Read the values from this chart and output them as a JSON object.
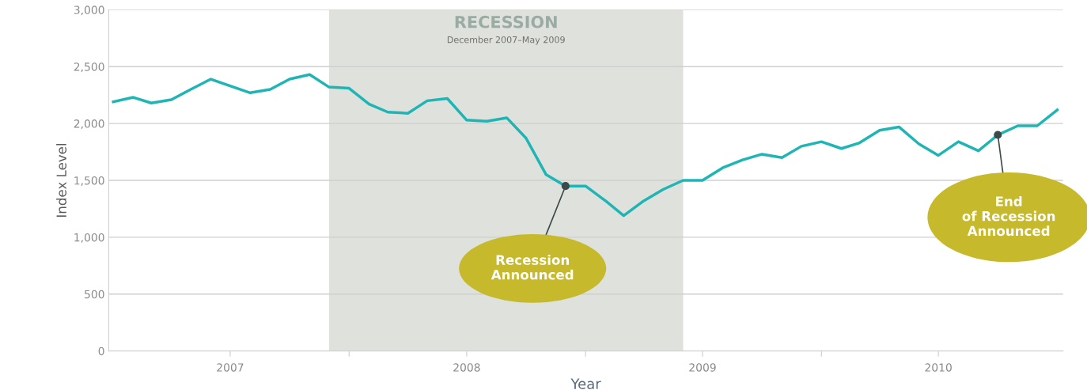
{
  "chart_data": {
    "type": "line",
    "xlabel": "Year",
    "ylabel": "Index Level",
    "x": [
      "2007-01",
      "2007-02",
      "2007-03",
      "2007-04",
      "2007-05",
      "2007-06",
      "2007-07",
      "2007-08",
      "2007-09",
      "2007-10",
      "2007-11",
      "2007-12",
      "2008-01",
      "2008-02",
      "2008-03",
      "2008-04",
      "2008-05",
      "2008-06",
      "2008-07",
      "2008-08",
      "2008-09",
      "2008-10",
      "2008-11",
      "2008-12",
      "2009-01",
      "2009-02",
      "2009-03",
      "2009-04",
      "2009-05",
      "2009-06",
      "2009-07",
      "2009-08",
      "2009-09",
      "2009-10",
      "2009-11",
      "2009-12",
      "2010-01",
      "2010-02",
      "2010-03",
      "2010-04",
      "2010-05",
      "2010-06",
      "2010-07",
      "2010-08",
      "2010-09",
      "2010-10",
      "2010-11",
      "2010-12",
      "2011-01"
    ],
    "series": [
      {
        "color": "#1fb5b5",
        "values": [
          2190,
          2230,
          2180,
          2210,
          2300,
          2390,
          2330,
          2270,
          2300,
          2390,
          2430,
          2320,
          2310,
          2170,
          2100,
          2090,
          2200,
          2220,
          2030,
          2020,
          2050,
          1870,
          1550,
          1450,
          1450,
          1320,
          1190,
          1320,
          1420,
          1500,
          1500,
          1610,
          1680,
          1730,
          1700,
          1800,
          1840,
          1780,
          1830,
          1940,
          1970,
          1820,
          1720,
          1840,
          1760,
          1900,
          1980,
          1980,
          2120
        ]
      }
    ],
    "xlim": [
      "2006-12-25",
      "2011-01-10"
    ],
    "xticks": [
      {
        "value": "2007-07-01",
        "label": "2007"
      },
      {
        "value": "2008-01-01",
        "label": null
      },
      {
        "value": "2008-07-01",
        "label": "2008"
      },
      {
        "value": "2009-01-01",
        "label": null
      },
      {
        "value": "2009-07-01",
        "label": "2009"
      },
      {
        "value": "2010-01-01",
        "label": null
      },
      {
        "value": "2010-07-01",
        "label": "2010"
      }
    ],
    "ylim": [
      0,
      3000
    ],
    "yticks": [
      {
        "value": 0,
        "label": "0"
      },
      {
        "value": 500,
        "label": "500"
      },
      {
        "value": 1000,
        "label": "1,000"
      },
      {
        "value": 1500,
        "label": "1,500"
      },
      {
        "value": 2000,
        "label": "2,000"
      },
      {
        "value": 2500,
        "label": "2,500"
      },
      {
        "value": 3000,
        "label": "3,000"
      }
    ],
    "grid": "y",
    "bands": [
      {
        "axis": "x",
        "from": "2007-12",
        "to": "2009-06",
        "label": "RECESSION",
        "color": "#dfe1dc"
      }
    ],
    "annotations": [
      "December 2007–May 2009",
      {
        "text": "Recession\nAnnounced",
        "x": "2008-12",
        "y": 1450
      },
      {
        "text": "End\nof Recession\nAnnounced",
        "x": "2010-10",
        "y": 1900
      }
    ]
  }
}
